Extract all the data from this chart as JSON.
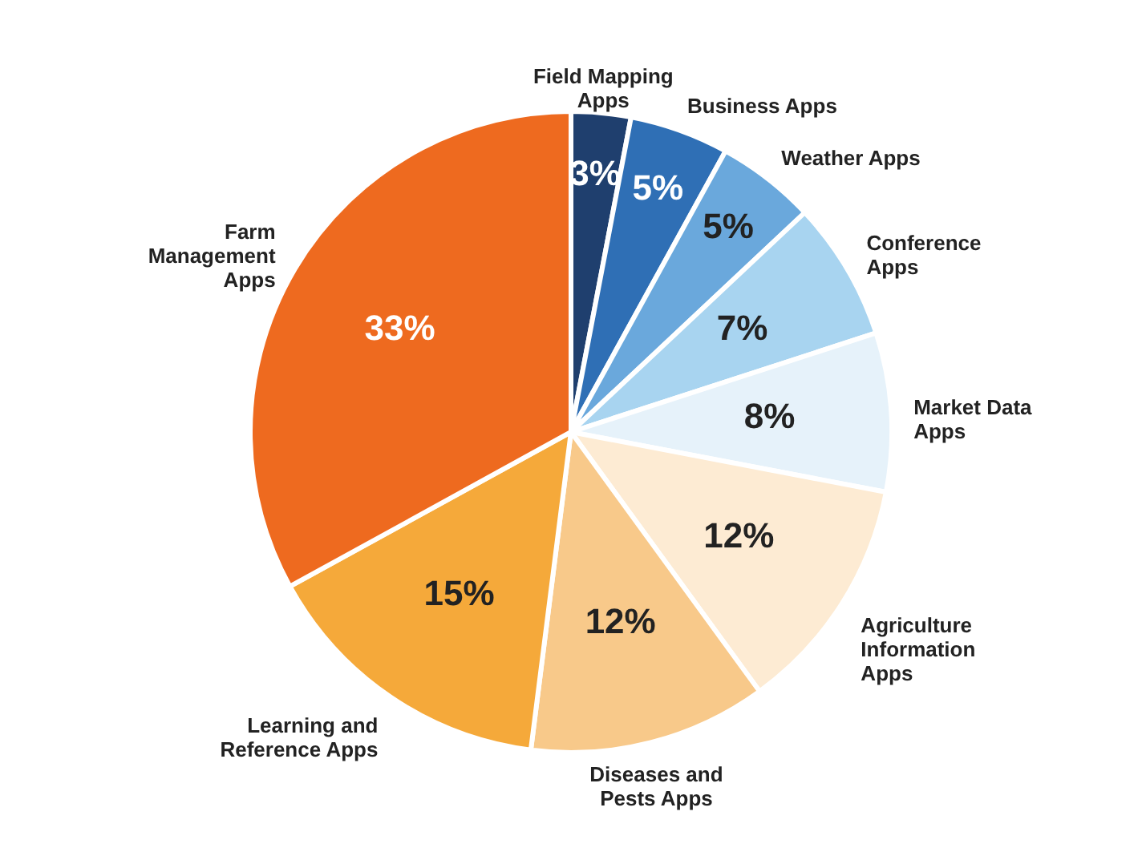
{
  "chart_data": {
    "type": "pie",
    "categories": [
      "Field Mapping Apps",
      "Business Apps",
      "Weather Apps",
      "Conference Apps",
      "Market Data Apps",
      "Agriculture Information Apps",
      "Diseases and Pests Apps",
      "Learning and Reference Apps",
      "Farm Management Apps"
    ],
    "values": [
      3,
      5,
      5,
      7,
      8,
      12,
      12,
      15,
      33
    ],
    "value_labels": [
      "3%",
      "5%",
      "5%",
      "7%",
      "8%",
      "12%",
      "12%",
      "15%",
      "33%"
    ],
    "colors": [
      "#1f3f6e",
      "#2f6fb5",
      "#6aa8dc",
      "#a8d4f0",
      "#e6f2fa",
      "#fdebd3",
      "#f8c98a",
      "#f5a93a",
      "#ee6a1f"
    ]
  }
}
